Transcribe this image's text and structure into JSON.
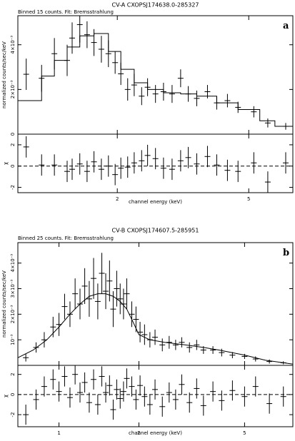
{
  "chart_data": [
    {
      "type": "errorbar",
      "title": "CV-A  CXOPSJ174638.0-285327",
      "subtitle": "Binned 15 counts. Fit: Bremsstrahlung",
      "panel_label": "a",
      "ylabel": "normalized counts/sec/keV",
      "xlabel": "channel energy (keV)",
      "residual_ylabel": "χ",
      "xlog": true,
      "xlim": [
        1.0,
        6.8
      ],
      "xticks": [
        2,
        5
      ],
      "ylim": [
        0,
        0.0053
      ],
      "yticks": [
        0,
        {
          "value": 0.002,
          "label": "2×10⁻³"
        },
        {
          "value": 0.004,
          "label": "4×10⁻³"
        }
      ],
      "residual_ylim": [
        -2.5,
        3
      ],
      "residual_yticks": [
        -2,
        0,
        2
      ],
      "x": [
        1.06,
        1.18,
        1.29,
        1.41,
        1.46,
        1.54,
        1.62,
        1.7,
        1.79,
        1.88,
        1.97,
        2.05,
        2.15,
        2.25,
        2.37,
        2.47,
        2.61,
        2.76,
        2.93,
        3.11,
        3.28,
        3.48,
        3.75,
        4.0,
        4.31,
        4.64,
        5.18,
        5.71,
        6.47
      ],
      "values": [
        0.00268,
        0.0025,
        0.0036,
        0.0033,
        0.0043,
        0.0049,
        0.00445,
        0.0041,
        0.0038,
        0.0036,
        0.0032,
        0.0027,
        0.002,
        0.0022,
        0.0017,
        0.0021,
        0.0018,
        0.0019,
        0.0018,
        0.0025,
        0.0018,
        0.0016,
        0.0019,
        0.0014,
        0.0015,
        0.0012,
        0.001,
        0.0005,
        0.00035
      ],
      "errors": [
        0.0007,
        0.0006,
        0.0007,
        0.0007,
        0.0007,
        0.0008,
        0.0006,
        0.0006,
        0.0006,
        0.0006,
        0.0005,
        0.0005,
        0.0005,
        0.0005,
        0.0004,
        0.0004,
        0.0004,
        0.0004,
        0.0004,
        0.0004,
        0.00035,
        0.00035,
        0.0003,
        0.0003,
        0.0003,
        0.00025,
        0.00025,
        0.0002,
        0.00015
      ],
      "residuals": [
        1.8,
        0.1,
        0.1,
        -0.5,
        -0.3,
        0.2,
        -0.5,
        0.4,
        -0.3,
        0.0,
        -0.8,
        -0.2,
        -0.1,
        0.3,
        0.5,
        1.0,
        0.7,
        -0.2,
        -0.3,
        0.5,
        0.8,
        0.2,
        0.9,
        0.1,
        -0.4,
        -0.5,
        0.3,
        -1.5,
        0.3
      ],
      "residual_errors": [
        1,
        1,
        1,
        1,
        1,
        1,
        1,
        1,
        1,
        1,
        1,
        1,
        1,
        1,
        1,
        1,
        1,
        1,
        1,
        1,
        1,
        1,
        1,
        1,
        1,
        1,
        1,
        1,
        1
      ],
      "model_step": true,
      "model_x": [
        1.0,
        1.18,
        1.29,
        1.41,
        1.54,
        1.7,
        1.88,
        2.05,
        2.25,
        2.47,
        2.76,
        3.11,
        3.48,
        4.0,
        4.64,
        5.4,
        6.0,
        6.8
      ],
      "model_values": [
        0.0015,
        0.0026,
        0.0033,
        0.0039,
        0.0044,
        0.0045,
        0.0037,
        0.0029,
        0.0023,
        0.002,
        0.00185,
        0.0018,
        0.0017,
        0.0014,
        0.0011,
        0.0006,
        0.00035
      ]
    },
    {
      "type": "errorbar",
      "title": "CV-B  CXOPSJ174607.5-285951",
      "subtitle": "Binned 25 counts. Fit: Bremsstrahlung",
      "panel_label": "b",
      "ylabel": "normalized counts/sec/keV",
      "xlabel": "channel energy (keV)",
      "residual_ylabel": "χ",
      "xlog": true,
      "xlim": [
        0.7,
        7.6
      ],
      "xticks": [
        1,
        2,
        5
      ],
      "ylim": [
        0,
        0.0048
      ],
      "yticks": [
        {
          "value": 0.001,
          "label": "10⁻³"
        },
        {
          "value": 0.002,
          "label": "2×10⁻³"
        },
        {
          "value": 0.003,
          "label": "3×10⁻³"
        },
        {
          "value": 0.004,
          "label": "4×10⁻³"
        }
      ],
      "residual_ylim": [
        -3.2,
        2.9
      ],
      "residual_yticks": [
        -2,
        0,
        2
      ],
      "x": [
        0.75,
        0.82,
        0.88,
        0.95,
        1.0,
        1.05,
        1.1,
        1.15,
        1.2,
        1.25,
        1.3,
        1.35,
        1.4,
        1.45,
        1.5,
        1.55,
        1.6,
        1.65,
        1.7,
        1.75,
        1.8,
        1.88,
        1.95,
        2.02,
        2.1,
        2.2,
        2.3,
        2.45,
        2.6,
        2.75,
        2.9,
        3.1,
        3.3,
        3.5,
        3.8,
        4.1,
        4.5,
        5.0,
        5.5,
        6.2,
        7.0
      ],
      "values": [
        0.0003,
        0.0007,
        0.001,
        0.0015,
        0.0016,
        0.0023,
        0.002,
        0.0028,
        0.0024,
        0.0031,
        0.0026,
        0.0034,
        0.0025,
        0.0036,
        0.0029,
        0.0033,
        0.0022,
        0.003,
        0.0026,
        0.0024,
        0.0028,
        0.002,
        0.0018,
        0.0013,
        0.0012,
        0.001,
        0.0011,
        0.0008,
        0.0009,
        0.0008,
        0.0009,
        0.0007,
        0.0008,
        0.0006,
        0.0006,
        0.0005,
        0.0004,
        0.00035,
        0.00025,
        0.00015,
        0.0001
      ],
      "errors": [
        0.00015,
        0.0002,
        0.0003,
        0.0004,
        0.00045,
        0.0005,
        0.0005,
        0.0006,
        0.0006,
        0.0007,
        0.0007,
        0.0008,
        0.0007,
        0.0008,
        0.0007,
        0.0008,
        0.0007,
        0.0007,
        0.0006,
        0.0006,
        0.0006,
        0.0005,
        0.0005,
        0.0004,
        0.0004,
        0.0003,
        0.0003,
        0.00025,
        0.00025,
        0.0002,
        0.0002,
        0.0002,
        0.0002,
        0.00015,
        0.00015,
        0.00015,
        0.00012,
        0.0001,
        0.0001,
        8e-05,
        6e-05
      ],
      "residuals": [
        -2.0,
        -0.5,
        0.8,
        1.5,
        0.3,
        1.8,
        -0.3,
        2.0,
        0.2,
        1.2,
        -0.8,
        1.5,
        -1.0,
        1.8,
        0.2,
        0.9,
        -1.5,
        0.5,
        -0.4,
        0.3,
        1.6,
        0.8,
        -0.5,
        0.9,
        -0.2,
        -1.0,
        0.5,
        -1.2,
        0.2,
        -0.5,
        1.0,
        -0.8,
        0.6,
        -1.1,
        0.3,
        -0.6,
        0.4,
        -0.2,
        0.8,
        -0.9,
        -0.2
      ],
      "residual_errors": [
        1,
        1,
        1,
        1,
        1,
        1,
        1,
        1,
        1,
        1,
        1,
        1,
        1,
        1,
        1,
        1,
        1,
        1,
        1,
        1,
        1,
        1,
        1,
        1,
        1,
        1,
        1,
        1,
        1,
        1,
        1,
        1,
        1,
        1,
        1,
        1,
        1,
        1,
        1,
        1,
        1
      ],
      "model_step": false,
      "model_x": [
        0.7,
        0.8,
        0.9,
        1.0,
        1.1,
        1.2,
        1.3,
        1.4,
        1.5,
        1.6,
        1.7,
        1.8,
        1.9,
        2.0,
        2.2,
        2.5,
        3.0,
        3.5,
        4.0,
        5.0,
        6.0,
        7.6
      ],
      "model_values": [
        0.0003,
        0.0006,
        0.001,
        0.0015,
        0.002,
        0.0024,
        0.0027,
        0.0028,
        0.0028,
        0.0027,
        0.0025,
        0.0022,
        0.0017,
        0.0012,
        0.001,
        0.0009,
        0.0008,
        0.0007,
        0.0006,
        0.0004,
        0.0002,
        5e-05
      ]
    }
  ]
}
